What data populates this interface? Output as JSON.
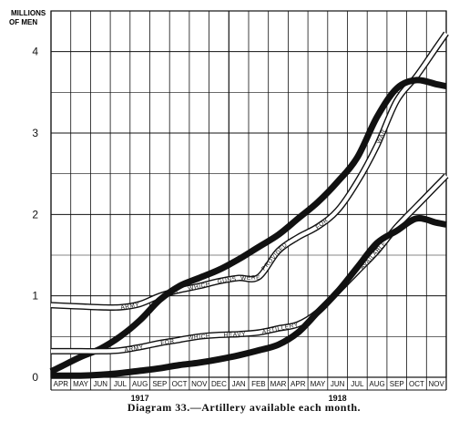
{
  "chart_data": {
    "type": "line",
    "title": "Diagram 33.—Artillery available each month.",
    "ylabel_line1": "MILLIONS",
    "ylabel_line2": "OF MEN",
    "ylim": [
      0,
      4.5
    ],
    "yticks": [
      0,
      1,
      2,
      3,
      4
    ],
    "grid": true,
    "categories": [
      "APR",
      "MAY",
      "JUN",
      "JUL",
      "AUG",
      "SEP",
      "OCT",
      "NOV",
      "DEC",
      "JAN",
      "FEB",
      "MAR",
      "APR",
      "MAY",
      "JUN",
      "JUL",
      "AUG",
      "SEP",
      "OCT",
      "NOV"
    ],
    "year_labels": [
      {
        "label": "1917",
        "at_month_index": 4.5
      },
      {
        "label": "1918",
        "at_month_index": 14.5
      }
    ],
    "series": [
      {
        "name": "Army",
        "style": "double-line",
        "values": [
          0.88,
          0.87,
          0.86,
          0.86,
          0.9,
          1.0,
          1.07,
          1.12,
          1.18,
          1.22,
          1.23,
          1.55,
          1.72,
          1.85,
          2.05,
          2.4,
          2.85,
          3.4,
          3.7,
          4.05
        ]
      },
      {
        "name": "Guns",
        "style": "thick-band",
        "values": [
          0.13,
          0.25,
          0.35,
          0.5,
          0.7,
          0.95,
          1.12,
          1.22,
          1.32,
          1.45,
          1.6,
          1.75,
          1.95,
          2.15,
          2.4,
          2.7,
          3.2,
          3.55,
          3.65,
          3.6
        ]
      },
      {
        "name": "Heavy artillery",
        "style": "double-line",
        "values": [
          0.32,
          0.32,
          0.32,
          0.33,
          0.37,
          0.42,
          0.46,
          0.5,
          0.52,
          0.53,
          0.55,
          0.6,
          0.65,
          0.8,
          1.05,
          1.3,
          1.55,
          1.85,
          2.1,
          2.35
        ]
      },
      {
        "name": "Heavy guns",
        "style": "thick-band",
        "values": [
          0.02,
          0.02,
          0.03,
          0.05,
          0.08,
          0.11,
          0.15,
          0.18,
          0.22,
          0.27,
          0.33,
          0.4,
          0.55,
          0.8,
          1.05,
          1.35,
          1.65,
          1.8,
          1.95,
          1.9
        ]
      }
    ],
    "annotations": [
      {
        "text": "ARMY",
        "series": "Army",
        "at": 3.5
      },
      {
        "text": "FOR",
        "series": "Army",
        "at": 5.6
      },
      {
        "text": "WHICH",
        "series": "Army",
        "at": 7.0
      },
      {
        "text": "GUNS",
        "series": "Army",
        "at": 8.4
      },
      {
        "text": "WERE",
        "series": "Army",
        "at": 9.6
      },
      {
        "text": "PROVIDED",
        "series": "Army",
        "at": 10.8
      },
      {
        "text": "FOR",
        "series": "Army",
        "at": 13.2
      },
      {
        "text": "WAR",
        "series": "Army",
        "at": 16.2
      },
      {
        "text": "ARMY",
        "series": "Heavy artillery",
        "at": 3.7
      },
      {
        "text": "FOR",
        "series": "Heavy artillery",
        "at": 5.4
      },
      {
        "text": "WHICH",
        "series": "Heavy artillery",
        "at": 7.0
      },
      {
        "text": "HEAVY",
        "series": "Heavy artillery",
        "at": 8.8
      },
      {
        "text": "ARTILLERY",
        "series": "Heavy artillery",
        "at": 11.1
      },
      {
        "text": "WAS",
        "series": "Heavy artillery",
        "at": 14.1
      },
      {
        "text": "AVAILABLE",
        "series": "Heavy artillery",
        "at": 15.8
      },
      {
        "text": "GUNS",
        "series": "Heavy guns",
        "at": 7.2
      },
      {
        "text": "FOR",
        "series": "Heavy guns",
        "at": 8.6
      },
      {
        "text": "HEAVY",
        "series": "Heavy guns",
        "at": 9.7
      }
    ]
  }
}
